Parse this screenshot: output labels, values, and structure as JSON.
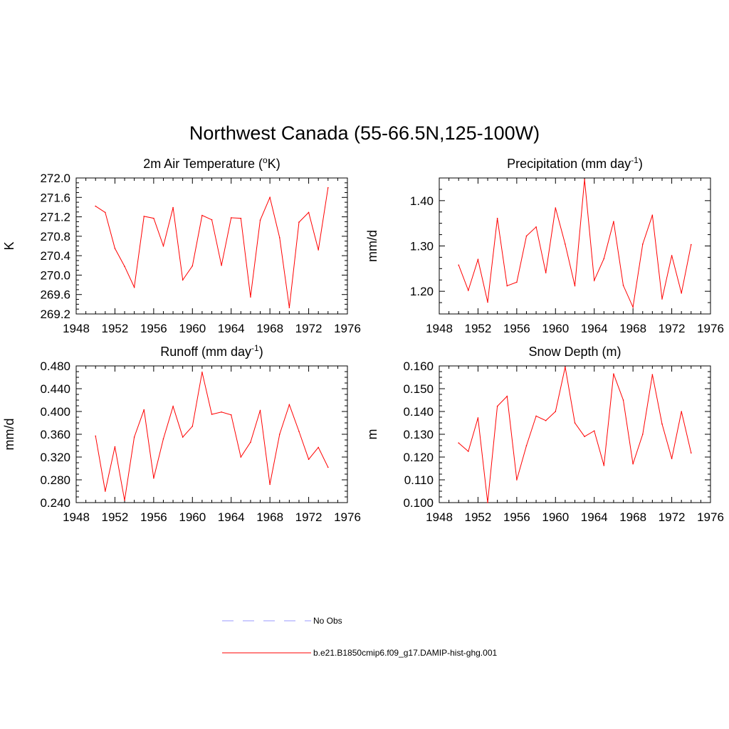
{
  "figure": {
    "title": "Northwest Canada (55-66.5N,125-100W)",
    "line_color": "#ff0000",
    "obs_color": "#9999ff"
  },
  "legend": {
    "placement": "bottom-center",
    "items": [
      {
        "label": "No Obs",
        "style": "dashed",
        "color": "#9999ff"
      },
      {
        "label": "b.e21.B1850cmip6.f09_g17.DAMIP-hist-ghg.001",
        "style": "solid",
        "color": "#ff0000"
      }
    ]
  },
  "chart_data": [
    {
      "type": "line",
      "title": "2m Air Temperature (",
      "title_sup": "o",
      "title_after": "K)",
      "xlabel": "",
      "ylabel": "K",
      "xlim": [
        1948,
        1976
      ],
      "ylim": [
        269.2,
        272.0
      ],
      "xticks": [
        "1948",
        "1952",
        "1956",
        "1960",
        "1964",
        "1968",
        "1972",
        "1976"
      ],
      "yticks": [
        "269.2",
        "269.6",
        "270.0",
        "270.4",
        "270.8",
        "271.2",
        "271.6",
        "272.0"
      ],
      "x": [
        1950,
        1951,
        1952,
        1953,
        1954,
        1955,
        1956,
        1957,
        1958,
        1959,
        1960,
        1961,
        1962,
        1963,
        1964,
        1965,
        1966,
        1967,
        1968,
        1969,
        1970,
        1971,
        1972,
        1973,
        1974
      ],
      "values": [
        271.42,
        271.29,
        270.55,
        270.18,
        269.75,
        271.21,
        271.17,
        270.6,
        271.39,
        269.9,
        270.19,
        271.23,
        271.14,
        270.2,
        271.18,
        271.17,
        269.55,
        271.13,
        271.6,
        270.77,
        269.33,
        271.09,
        271.29,
        270.52,
        271.8
      ]
    },
    {
      "type": "line",
      "title": "Precipitation (mm day",
      "title_sup": "-1",
      "title_after": ")",
      "xlabel": "",
      "ylabel": "mm/d",
      "xlim": [
        1948,
        1976
      ],
      "ylim": [
        1.15,
        1.45
      ],
      "xticks": [
        "1948",
        "1952",
        "1956",
        "1960",
        "1964",
        "1968",
        "1972",
        "1976"
      ],
      "yticks": [
        "1.20",
        "1.30",
        "1.40"
      ],
      "ytick_values": [
        1.2,
        1.3,
        1.4
      ],
      "x": [
        1950,
        1951,
        1952,
        1953,
        1954,
        1955,
        1956,
        1957,
        1958,
        1959,
        1960,
        1961,
        1962,
        1963,
        1964,
        1965,
        1966,
        1967,
        1968,
        1969,
        1970,
        1971,
        1972,
        1973,
        1974
      ],
      "values": [
        1.258,
        1.202,
        1.27,
        1.176,
        1.361,
        1.212,
        1.22,
        1.322,
        1.342,
        1.241,
        1.384,
        1.304,
        1.212,
        1.447,
        1.224,
        1.272,
        1.354,
        1.213,
        1.165,
        1.304,
        1.368,
        1.183,
        1.279,
        1.196,
        1.303
      ]
    },
    {
      "type": "line",
      "title": "Runoff (mm day",
      "title_sup": "-1",
      "title_after": ")",
      "xlabel": "",
      "ylabel": "mm/d",
      "xlim": [
        1948,
        1976
      ],
      "ylim": [
        0.24,
        0.48
      ],
      "xticks": [
        "1948",
        "1952",
        "1956",
        "1960",
        "1964",
        "1968",
        "1972",
        "1976"
      ],
      "yticks": [
        "0.240",
        "0.280",
        "0.320",
        "0.360",
        "0.400",
        "0.440",
        "0.480"
      ],
      "x": [
        1950,
        1951,
        1952,
        1953,
        1954,
        1955,
        1956,
        1957,
        1958,
        1959,
        1960,
        1961,
        1962,
        1963,
        1964,
        1965,
        1966,
        1967,
        1968,
        1969,
        1970,
        1971,
        1972,
        1973,
        1974
      ],
      "values": [
        0.357,
        0.26,
        0.338,
        0.244,
        0.355,
        0.403,
        0.283,
        0.352,
        0.409,
        0.355,
        0.374,
        0.469,
        0.395,
        0.399,
        0.394,
        0.32,
        0.346,
        0.402,
        0.272,
        0.36,
        0.412,
        0.365,
        0.316,
        0.337,
        0.302
      ]
    },
    {
      "type": "line",
      "title": "Snow Depth (m)",
      "title_sup": "",
      "title_after": "",
      "xlabel": "",
      "ylabel": "m",
      "xlim": [
        1948,
        1976
      ],
      "ylim": [
        0.1,
        0.16
      ],
      "xticks": [
        "1948",
        "1952",
        "1956",
        "1960",
        "1964",
        "1968",
        "1972",
        "1976"
      ],
      "yticks": [
        "0.100",
        "0.110",
        "0.120",
        "0.130",
        "0.140",
        "0.150",
        "0.160"
      ],
      "x": [
        1950,
        1951,
        1952,
        1953,
        1954,
        1955,
        1956,
        1957,
        1958,
        1959,
        1960,
        1961,
        1962,
        1963,
        1964,
        1965,
        1966,
        1967,
        1968,
        1969,
        1970,
        1971,
        1972,
        1973,
        1974
      ],
      "values": [
        0.1262,
        0.1225,
        0.1372,
        0.1,
        0.1423,
        0.1467,
        0.11,
        0.125,
        0.138,
        0.136,
        0.14,
        0.1595,
        0.135,
        0.129,
        0.1315,
        0.1163,
        0.1565,
        0.145,
        0.117,
        0.13,
        0.1562,
        0.1345,
        0.1193,
        0.14,
        0.1218
      ]
    }
  ]
}
